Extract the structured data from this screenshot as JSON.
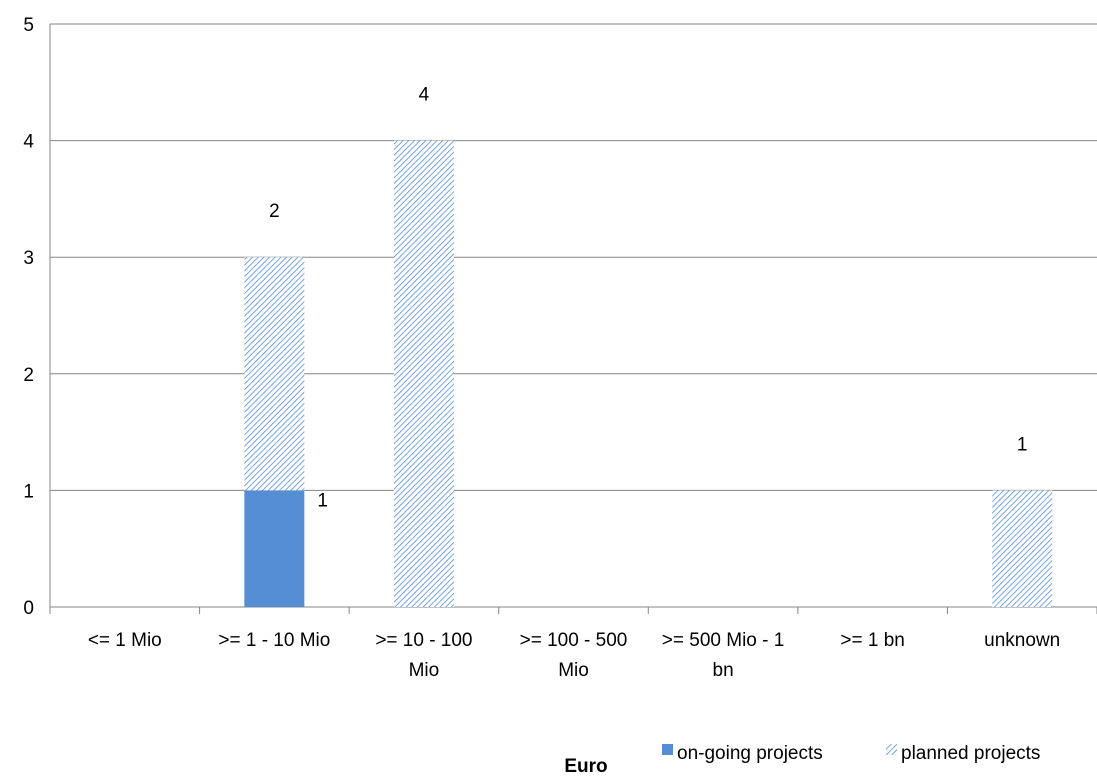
{
  "chart_data": {
    "type": "bar",
    "stacked": true,
    "categories": [
      [
        "<= 1 Mio"
      ],
      [
        ">=  1 - 10 Mio"
      ],
      [
        ">= 10 - 100",
        "Mio"
      ],
      [
        ">= 100 - 500",
        "Mio"
      ],
      [
        ">= 500 Mio - 1",
        "bn"
      ],
      [
        ">= 1 bn"
      ],
      [
        "unknown"
      ]
    ],
    "series": [
      {
        "name": "on-going projects",
        "values": [
          0,
          1,
          0,
          0,
          0,
          0,
          0
        ],
        "color": "#558ed5",
        "fill": "solid"
      },
      {
        "name": "planned projects",
        "values": [
          0,
          2,
          4,
          0,
          0,
          0,
          1
        ],
        "color": "#558ed5",
        "fill": "hatched"
      }
    ],
    "data_labels": [
      {
        "series": 1,
        "category": 1,
        "text": "2"
      },
      {
        "series": 1,
        "category": 2,
        "text": "4"
      },
      {
        "series": 1,
        "category": 6,
        "text": "1"
      },
      {
        "series": 0,
        "category": 1,
        "text": "1"
      }
    ],
    "title": "",
    "xlabel": "Euro",
    "ylabel": "",
    "ylim": [
      0,
      5
    ],
    "yticks": [
      "0",
      "1",
      "2",
      "3",
      "4",
      "5"
    ],
    "grid": true,
    "legend_position": "bottom-right"
  }
}
